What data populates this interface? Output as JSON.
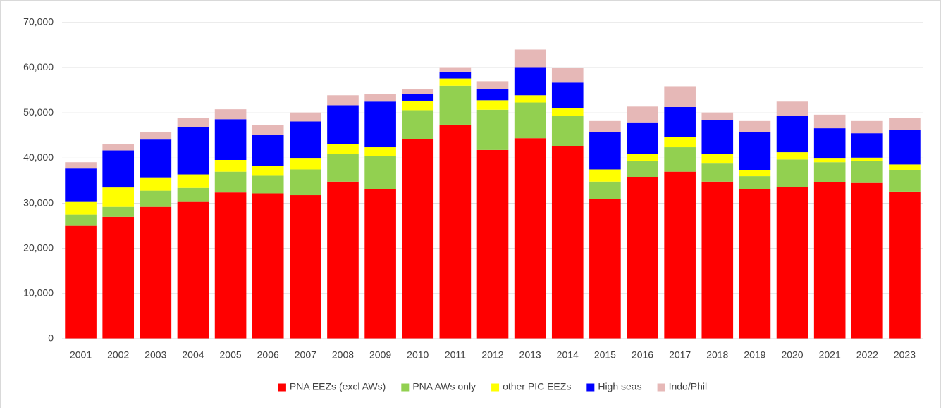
{
  "chart_data": {
    "type": "stacked_bar",
    "categories": [
      "2001",
      "2002",
      "2003",
      "2004",
      "2005",
      "2006",
      "2007",
      "2008",
      "2009",
      "2010",
      "2011",
      "2012",
      "2013",
      "2014",
      "2015",
      "2016",
      "2017",
      "2018",
      "2019",
      "2020",
      "2021",
      "2022",
      "2023"
    ],
    "series": [
      {
        "name": "PNA EEZs (excl AWs)",
        "color": "#ff0000",
        "values": [
          25000,
          27000,
          29200,
          30300,
          32400,
          32200,
          31800,
          34800,
          33100,
          44200,
          47400,
          41800,
          44400,
          42700,
          31000,
          35800,
          37000,
          34800,
          33100,
          33600,
          34700,
          34500,
          32600
        ]
      },
      {
        "name": "PNA AWs only",
        "color": "#92d050",
        "values": [
          2500,
          2200,
          3600,
          3100,
          4600,
          3900,
          5700,
          6200,
          7300,
          6400,
          8600,
          8900,
          7900,
          6600,
          3800,
          3600,
          5400,
          4000,
          2900,
          6100,
          4400,
          4900,
          4800
        ]
      },
      {
        "name": "other PIC EEZs",
        "color": "#ffff00",
        "values": [
          2800,
          4300,
          2800,
          3000,
          2600,
          2200,
          2400,
          2100,
          2000,
          2100,
          1600,
          2100,
          1600,
          1800,
          2700,
          1600,
          2300,
          2100,
          1400,
          1600,
          800,
          700,
          1200
        ]
      },
      {
        "name": "High seas",
        "color": "#0000ff",
        "values": [
          7400,
          8200,
          8500,
          10400,
          9000,
          6900,
          8200,
          8600,
          10100,
          1400,
          1500,
          2500,
          6200,
          5600,
          8300,
          6900,
          6600,
          7500,
          8400,
          8100,
          6700,
          5400,
          7600
        ]
      },
      {
        "name": "Indo/Phil",
        "color": "#e6b8b7",
        "values": [
          1400,
          1400,
          1700,
          2000,
          2200,
          2100,
          2000,
          2200,
          1600,
          1100,
          1000,
          1700,
          3900,
          3200,
          2400,
          3500,
          4600,
          1700,
          2400,
          3100,
          3000,
          2700,
          2700
        ]
      }
    ],
    "ylim": [
      0,
      70000
    ],
    "yticks": [
      0,
      {
        "value": 10000,
        "label": "10,000"
      },
      {
        "value": 20000,
        "label": "20,000"
      },
      {
        "value": 30000,
        "label": "30,000"
      },
      {
        "value": 40000,
        "label": "40,000"
      },
      {
        "value": 50000,
        "label": "50,000"
      },
      {
        "value": 60000,
        "label": "60,000"
      },
      {
        "value": 70000,
        "label": "70,000"
      }
    ],
    "grid": true,
    "legend": "bottom"
  }
}
